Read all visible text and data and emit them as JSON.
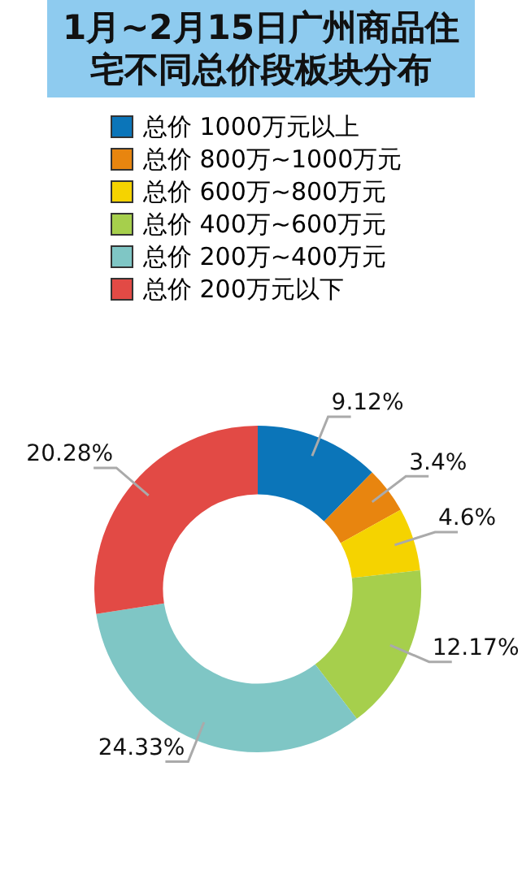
{
  "chart_data": {
    "type": "donut",
    "title": "1月~2月15日广州商品住宅不同总价段板块分布",
    "categories": [
      "总价 1000万元以上",
      "总价 800万~1000万元",
      "总价 600万~800万元",
      "总价 400万~600万元",
      "总价 200万~400万元",
      "总价 200万元以下"
    ],
    "values": [
      9.12,
      3.4,
      4.6,
      12.17,
      24.33,
      20.28
    ],
    "value_labels": [
      "9.12%",
      "3.4%",
      "4.6%",
      "12.17%",
      "24.33%",
      "20.28%"
    ],
    "colors": [
      "#0b75b9",
      "#e8850f",
      "#f5d300",
      "#a6cf4c",
      "#7fc6c5",
      "#e24a45"
    ],
    "legend": "top"
  }
}
